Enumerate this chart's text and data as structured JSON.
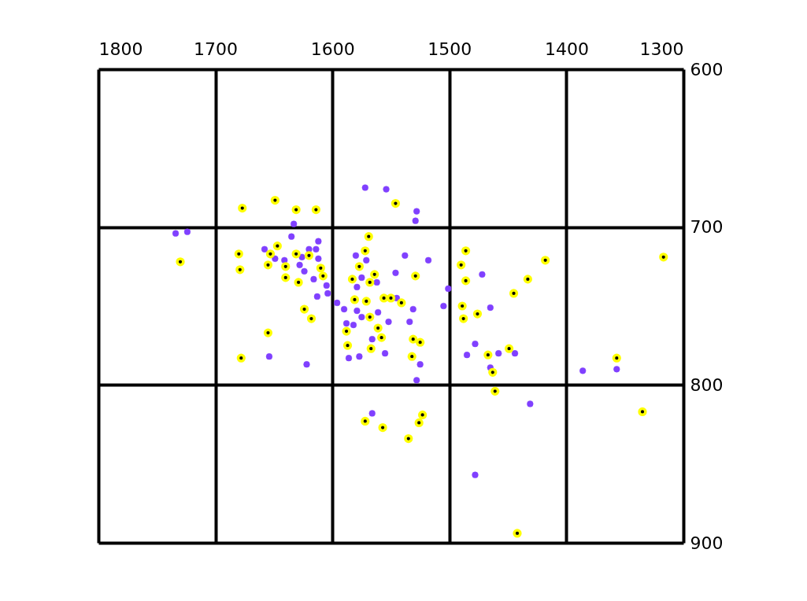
{
  "chart_data": {
    "type": "scatter",
    "xlim": [
      1800,
      1300
    ],
    "xticks": [
      1800,
      1700,
      1600,
      1500,
      1400,
      1300
    ],
    "ylim": [
      900,
      600
    ],
    "yticks": [
      600,
      700,
      800,
      900
    ],
    "grid": true,
    "marker": "circle",
    "series": [
      {
        "color": "#8040ff",
        "x": [
          1734,
          1724,
          1633,
          1635,
          1612,
          1658,
          1620,
          1614,
          1626,
          1649,
          1641,
          1612,
          1628,
          1624,
          1616,
          1605,
          1604,
          1613,
          1596,
          1654,
          1622,
          1572,
          1554,
          1528,
          1529,
          1580,
          1571,
          1538,
          1518,
          1546,
          1575,
          1562,
          1579,
          1501,
          1590,
          1579,
          1561,
          1531,
          1505,
          1545,
          1575,
          1588,
          1582,
          1552,
          1534,
          1566,
          1586,
          1577,
          1555,
          1525,
          1528,
          1478,
          1465,
          1472,
          1485,
          1458,
          1444,
          1465,
          1386,
          1357,
          1431,
          1478,
          1566
        ],
        "values": [
          704,
          703,
          698,
          706,
          709,
          714,
          714,
          714,
          719,
          720,
          721,
          720,
          724,
          728,
          733,
          737,
          742,
          744,
          748,
          782,
          787,
          675,
          676,
          690,
          696,
          718,
          721,
          718,
          721,
          729,
          732,
          735,
          738,
          739,
          752,
          753,
          754,
          752,
          750,
          745,
          757,
          761,
          762,
          760,
          760,
          771,
          783,
          782,
          780,
          787,
          797,
          774,
          751,
          730,
          781,
          780,
          780,
          789,
          791,
          790,
          812,
          857,
          818
        ]
      },
      {
        "color": "#ffff00",
        "x": [
          1730,
          1677,
          1649,
          1631,
          1614,
          1647,
          1680,
          1653,
          1631,
          1620,
          1679,
          1655,
          1640,
          1610,
          1608,
          1640,
          1629,
          1624,
          1618,
          1655,
          1678,
          1546,
          1569,
          1572,
          1577,
          1564,
          1583,
          1568,
          1529,
          1581,
          1571,
          1556,
          1550,
          1541,
          1568,
          1588,
          1561,
          1558,
          1587,
          1567,
          1531,
          1525,
          1532,
          1486,
          1490,
          1486,
          1489,
          1488,
          1476,
          1467,
          1463,
          1449,
          1418,
          1433,
          1445,
          1461,
          1317,
          1357,
          1335,
          1442,
          1572,
          1557,
          1523,
          1526,
          1535
        ],
        "values": [
          722,
          688,
          683,
          689,
          689,
          712,
          717,
          717,
          717,
          718,
          727,
          724,
          725,
          726,
          731,
          732,
          735,
          752,
          758,
          767,
          783,
          685,
          706,
          715,
          725,
          730,
          733,
          735,
          731,
          746,
          747,
          745,
          745,
          748,
          757,
          766,
          764,
          770,
          775,
          777,
          771,
          773,
          782,
          715,
          724,
          734,
          750,
          758,
          755,
          781,
          792,
          777,
          721,
          733,
          742,
          804,
          719,
          783,
          817,
          894,
          823,
          827,
          819,
          824,
          834
        ]
      }
    ]
  }
}
